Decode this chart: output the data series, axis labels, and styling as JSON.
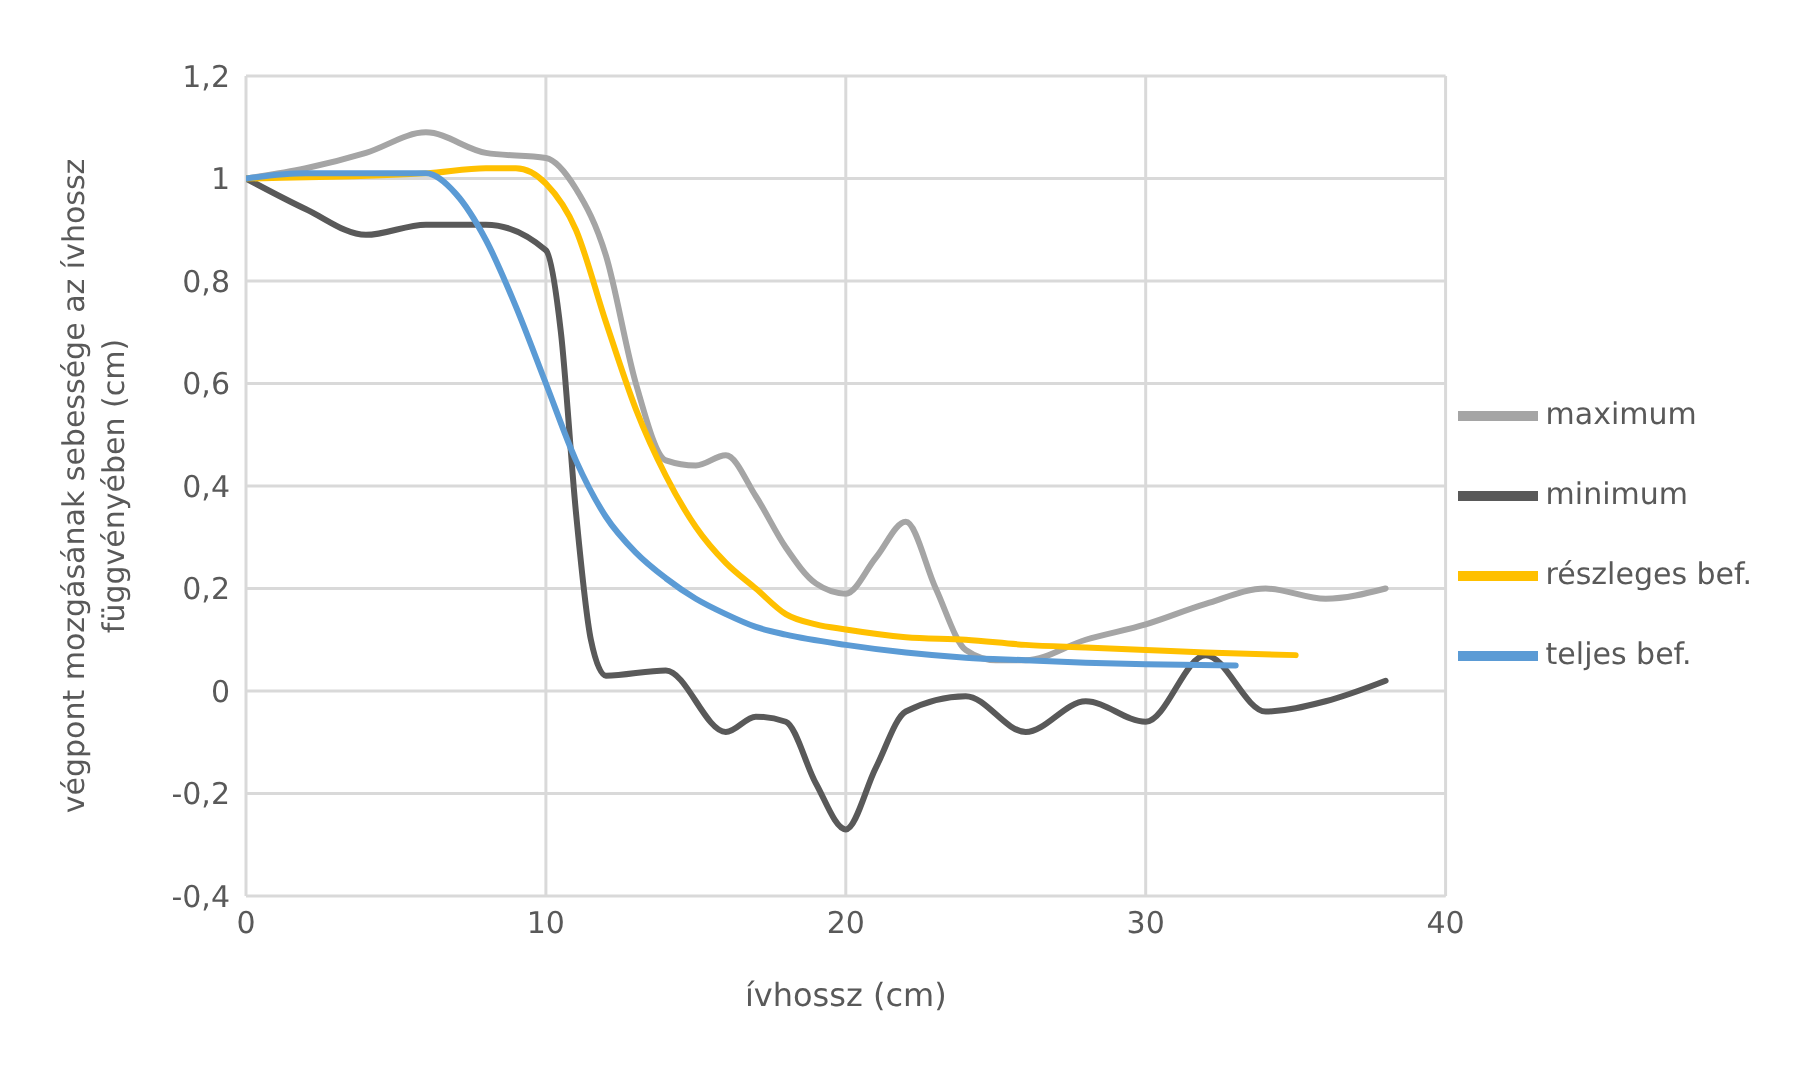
{
  "chart_data": {
    "type": "line",
    "xlabel": "ívhossz (cm)",
    "ylabel": "végpont mozgásának sebessége az ívhossz függvényében (cm)",
    "xlim": [
      0,
      40
    ],
    "xticks": [
      0,
      10,
      20,
      30,
      40
    ],
    "ylim": [
      -0.4,
      1.2
    ],
    "yticks": [
      {
        "value": -0.4,
        "label": "-0,4"
      },
      {
        "value": -0.2,
        "label": "-0,2"
      },
      0,
      {
        "value": 0.2,
        "label": "0,2"
      },
      {
        "value": 0.4,
        "label": "0,4"
      },
      {
        "value": 0.6,
        "label": "0,6"
      },
      {
        "value": 0.8,
        "label": "0,8"
      },
      1,
      {
        "value": 1.2,
        "label": "1,2"
      }
    ],
    "grid": true,
    "legend": "right",
    "marker": "none",
    "line_style": "solid",
    "series": [
      {
        "name": "maximum",
        "color": "#a5a5a5",
        "x": [
          0,
          2,
          4,
          6,
          8,
          10,
          11,
          12,
          13,
          14,
          15,
          16,
          17,
          18,
          19,
          20,
          21,
          22,
          23,
          24,
          25,
          26,
          28,
          30,
          32,
          34,
          36,
          38
        ],
        "values": [
          1,
          1.02,
          1.05,
          1.09,
          1.05,
          1.04,
          0.98,
          0.85,
          0.6,
          0.45,
          0.44,
          0.46,
          0.38,
          0.28,
          0.21,
          0.19,
          0.26,
          0.33,
          0.2,
          0.08,
          0.06,
          0.06,
          0.1,
          0.13,
          0.17,
          0.2,
          0.18,
          0.2
        ]
      },
      {
        "name": "minimum",
        "color": "#595959",
        "x": [
          0,
          2,
          4,
          6,
          8,
          10,
          10.5,
          11,
          11.5,
          12,
          14,
          16,
          17,
          18,
          19,
          20,
          21,
          22,
          24,
          26,
          28,
          30,
          32,
          34,
          36,
          38
        ],
        "values": [
          1,
          0.94,
          0.89,
          0.91,
          0.91,
          0.86,
          0.7,
          0.35,
          0.1,
          0.03,
          0.04,
          -0.08,
          -0.05,
          -0.06,
          -0.18,
          -0.27,
          -0.15,
          -0.04,
          -0.01,
          -0.08,
          -0.02,
          -0.06,
          0.07,
          -0.04,
          -0.02,
          0.02
        ]
      },
      {
        "name": "részleges bef.",
        "color": "#ffc000",
        "x": [
          0,
          6,
          8,
          9,
          10,
          11,
          12,
          13,
          14,
          15,
          16,
          17,
          18,
          19,
          20,
          22,
          24,
          26,
          28,
          30,
          32,
          35
        ],
        "values": [
          1,
          1.01,
          1.02,
          1.02,
          0.99,
          0.9,
          0.72,
          0.55,
          0.42,
          0.32,
          0.25,
          0.2,
          0.15,
          0.13,
          0.12,
          0.105,
          0.1,
          0.09,
          0.085,
          0.08,
          0.075,
          0.07
        ]
      },
      {
        "name": "teljes bef.",
        "color": "#5b9bd5",
        "x": [
          0,
          2,
          4,
          6,
          7,
          8,
          9,
          10,
          11,
          12,
          13,
          14,
          15,
          16,
          17,
          18,
          20,
          22,
          24,
          26,
          28,
          30,
          33
        ],
        "values": [
          1,
          1.01,
          1.01,
          1.01,
          0.97,
          0.88,
          0.75,
          0.6,
          0.45,
          0.34,
          0.27,
          0.22,
          0.18,
          0.15,
          0.125,
          0.11,
          0.09,
          0.075,
          0.065,
          0.06,
          0.055,
          0.052,
          0.05
        ]
      }
    ]
  }
}
